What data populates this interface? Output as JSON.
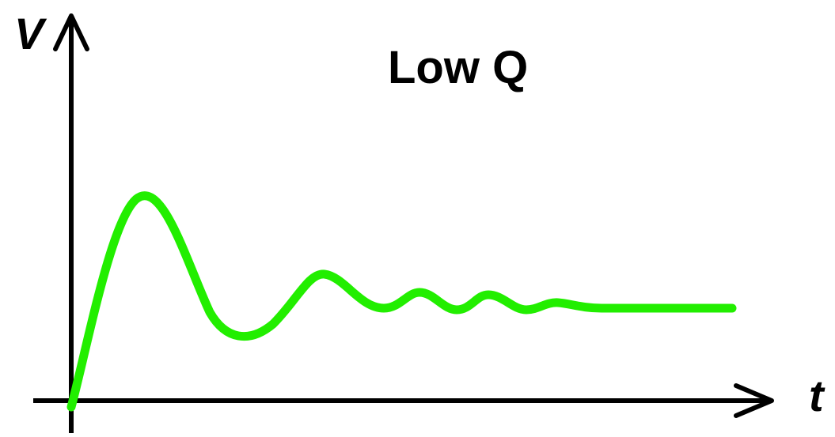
{
  "diagram": {
    "title": "Low Q",
    "y_axis_label": "V",
    "x_axis_label": "t",
    "curve_color": "#22ee00",
    "axis_color": "#000000",
    "curve_description_free": true
  },
  "chart_data": {
    "type": "line",
    "title": "Low Q",
    "xlabel": "t",
    "ylabel": "V",
    "grid": false,
    "series": [
      {
        "values": [
          0,
          2.25,
          0.7,
          1.45,
          1.0,
          1.2,
          1.0,
          1.15,
          1.02,
          1.05,
          1.0,
          1.0
        ]
      }
    ]
  }
}
